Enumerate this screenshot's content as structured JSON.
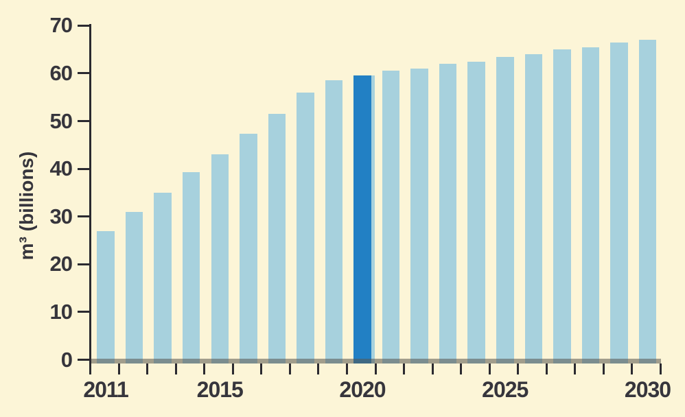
{
  "chart_data": {
    "type": "bar",
    "title": "",
    "xlabel": "",
    "ylabel": "m³ (billions)",
    "ylim": [
      0,
      70
    ],
    "yticks": [
      0,
      10,
      20,
      30,
      40,
      50,
      60,
      70
    ],
    "grid": false,
    "legend": "none",
    "categories": [
      2011,
      2012,
      2013,
      2014,
      2015,
      2016,
      2017,
      2018,
      2019,
      2020,
      2021,
      2022,
      2023,
      2024,
      2025,
      2026,
      2027,
      2028,
      2029,
      2030
    ],
    "values": [
      27.0,
      31.0,
      35.0,
      39.3,
      43.0,
      47.3,
      51.5,
      56.0,
      58.5,
      59.5,
      60.5,
      61.0,
      62.0,
      62.5,
      63.5,
      64.0,
      65.0,
      65.5,
      66.5,
      67.0
    ],
    "xtick_labels": [
      {
        "label": "2011",
        "index": 0
      },
      {
        "label": "2015",
        "index": 4
      },
      {
        "label": "2020",
        "index": 9
      },
      {
        "label": "2025",
        "index": 14
      },
      {
        "label": "2030",
        "index": 19
      }
    ],
    "highlight_year": 2020,
    "colors": {
      "background": "#FCF5D7",
      "bar": "#A7D1DD",
      "highlight_bar": "#2280C4",
      "axis": "#2B2A30",
      "text": "#36353C",
      "baseline_band": "rgba(88,86,78,0.55)"
    }
  }
}
